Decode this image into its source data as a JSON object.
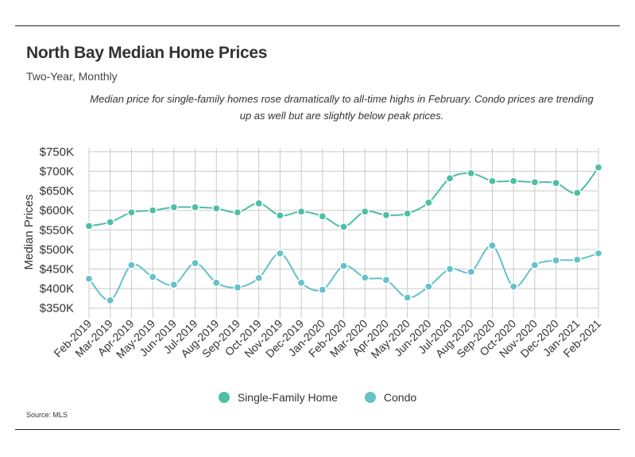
{
  "header": {
    "title": "North Bay Median Home Prices",
    "subtitle": "Two-Year, Monthly",
    "annotation": "Median price for single-family homes rose dramatically to all-time highs in February. Condo prices are trending up as well but are slightly below peak prices."
  },
  "source": "Source:  MLS",
  "chart_data": {
    "type": "line",
    "ylabel": "Median Prices",
    "xlabel": "",
    "ylim": [
      325000,
      760000
    ],
    "yticks": [
      350000,
      400000,
      450000,
      500000,
      550000,
      600000,
      650000,
      700000,
      750000
    ],
    "ytick_labels": [
      "$350K",
      "$400K",
      "$450K",
      "$500K",
      "$550K",
      "$600K",
      "$650K",
      "$700K",
      "$750K"
    ],
    "grid": true,
    "legend_position": "bottom",
    "categories": [
      "Feb-2019",
      "Mar-2019",
      "Apr-2019",
      "May-2019",
      "Jun-2019",
      "Jul-2019",
      "Aug-2019",
      "Sep-2019",
      "Oct-2019",
      "Nov-2019",
      "Dec-2019",
      "Jan-2020",
      "Feb-2020",
      "Mar-2020",
      "Apr-2020",
      "May-2020",
      "Jun-2020",
      "Jul-2020",
      "Aug-2020",
      "Sep-2020",
      "Oct-2020",
      "Nov-2020",
      "Dec-2020",
      "Jan-2021",
      "Feb-2021"
    ],
    "series": [
      {
        "name": "Single-Family Home",
        "color": "#4dbfa6",
        "values": [
          560000,
          570000,
          595000,
          600000,
          608000,
          608000,
          605000,
          595000,
          618000,
          587000,
          597000,
          585000,
          558000,
          597000,
          588000,
          592000,
          620000,
          682000,
          695000,
          675000,
          675000,
          672000,
          670000,
          645000,
          710000
        ]
      },
      {
        "name": "Condo",
        "color": "#66c1c9",
        "values": [
          425000,
          370000,
          460000,
          430000,
          410000,
          465000,
          415000,
          403000,
          427000,
          490000,
          415000,
          397000,
          458000,
          428000,
          422000,
          377000,
          405000,
          450000,
          443000,
          510000,
          405000,
          460000,
          472000,
          474000,
          490000
        ]
      }
    ]
  }
}
